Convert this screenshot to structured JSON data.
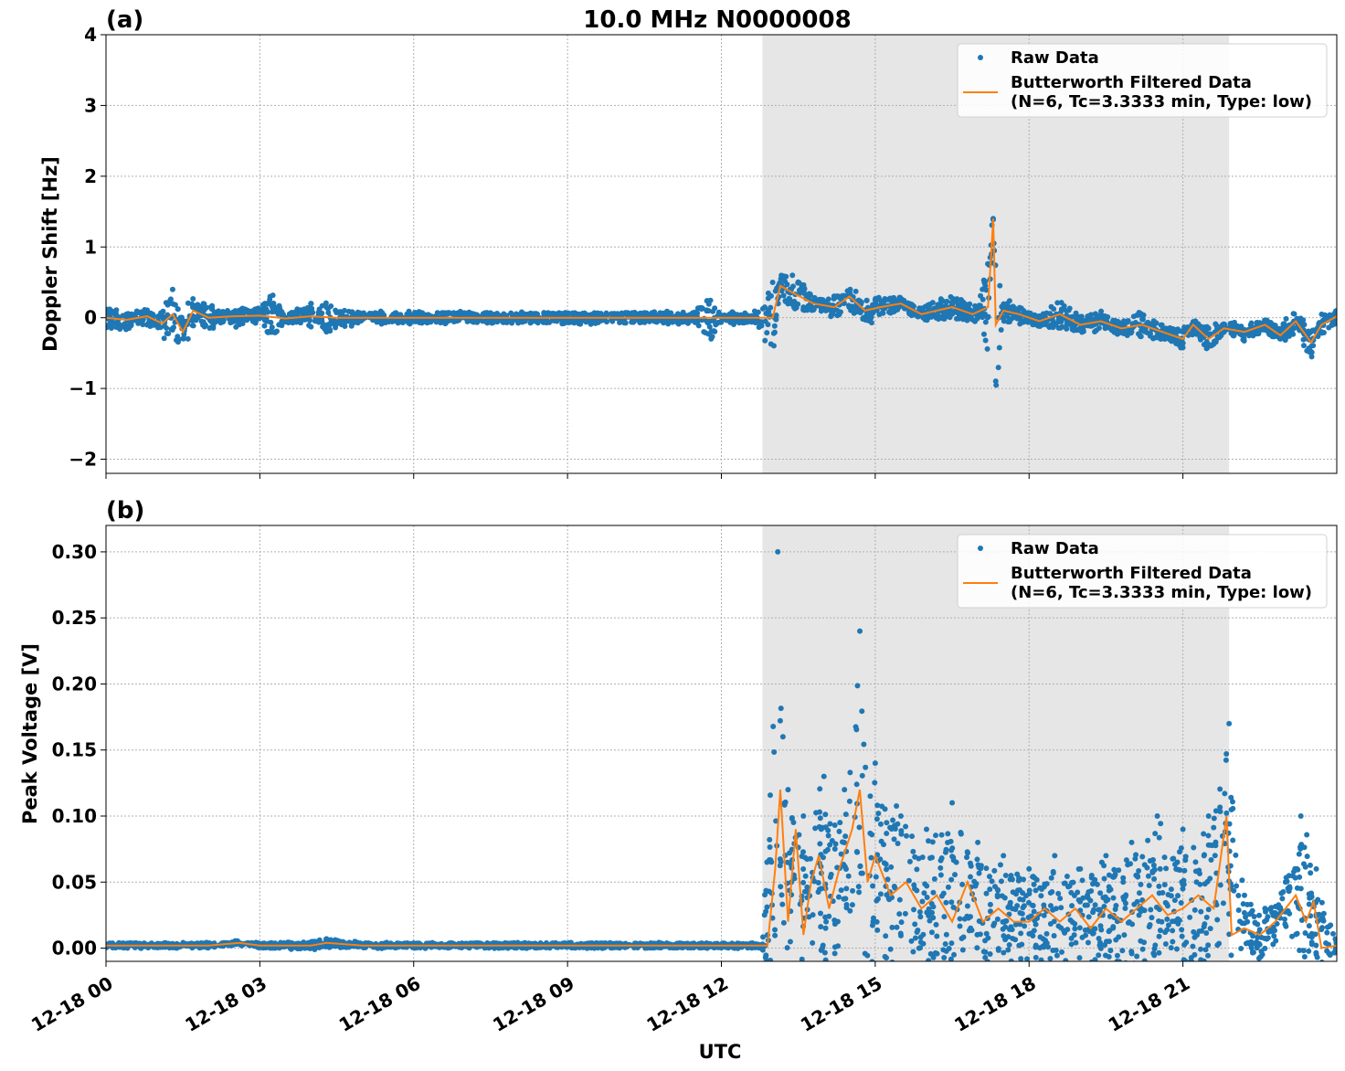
{
  "chart_data": [
    {
      "panel_label": "(a)",
      "type": "scatter",
      "title": "10.0 MHz N0000008",
      "ylabel": "Doppler Shift [Hz]",
      "xlabel": "",
      "x_unit": "hours UTC from 12-18 00",
      "xlim": [
        0,
        24
      ],
      "ylim": [
        -2.2,
        4.0
      ],
      "yticks": [
        -2,
        -1,
        0,
        1,
        2,
        3,
        4
      ],
      "ytick_labels": [
        "−2",
        "−1",
        "0",
        "1",
        "2",
        "3",
        "4"
      ],
      "xticks": [
        0,
        3,
        6,
        9,
        12,
        15,
        18,
        21
      ],
      "grid": true,
      "legend_position": "top-right",
      "shaded_region_hours": [
        12.8,
        21.9
      ],
      "colors": {
        "raw": "#1f77b4",
        "filtered": "#ff7f0e",
        "shade": "#e6e6e6",
        "grid": "#b0b0b0"
      },
      "series": [
        {
          "name": "Raw Data",
          "style": "points",
          "x": [
            0.0,
            0.5,
            1.0,
            1.3,
            1.6,
            1.9,
            2.2,
            2.6,
            3.0,
            3.2,
            3.5,
            3.8,
            4.0,
            4.3,
            4.6,
            5.0,
            6.0,
            7.0,
            8.0,
            9.0,
            10.0,
            11.0,
            11.5,
            11.8,
            12.0,
            12.5,
            12.7,
            13.0,
            13.1,
            13.3,
            13.6,
            14.0,
            14.3,
            14.6,
            15.0,
            15.5,
            16.0,
            16.5,
            17.0,
            17.3,
            17.5,
            18.0,
            18.5,
            19.0,
            19.5,
            20.0,
            20.5,
            21.0,
            21.5,
            22.0,
            22.5,
            23.0,
            23.3,
            23.7,
            24.0
          ],
          "y": [
            0.08,
            0.05,
            -0.1,
            0.4,
            -0.3,
            0.2,
            0.02,
            -0.05,
            0.1,
            0.3,
            0.0,
            -0.05,
            0.2,
            -0.2,
            0.05,
            0.0,
            0.0,
            0.0,
            0.0,
            0.0,
            0.0,
            0.0,
            0.0,
            -0.3,
            0.02,
            0.0,
            0.0,
            0.5,
            0.4,
            0.2,
            0.15,
            0.2,
            0.3,
            0.15,
            0.25,
            0.2,
            0.0,
            0.05,
            0.0,
            1.4,
            0.0,
            0.0,
            -0.1,
            -0.15,
            -0.1,
            -0.2,
            -0.25,
            -0.2,
            -0.15,
            -0.2,
            -0.1,
            -0.3,
            -0.05,
            -0.2,
            0.0
          ]
        },
        {
          "name": "Butterworth Filtered Data\n(N=6, Tc=3.3333 min, Type: low)",
          "style": "line",
          "x": [
            0.0,
            0.4,
            0.8,
            1.1,
            1.3,
            1.5,
            1.7,
            2.0,
            2.5,
            3.0,
            3.5,
            4.0,
            4.5,
            5.0,
            6.0,
            7.0,
            8.0,
            9.0,
            10.0,
            11.0,
            11.5,
            12.0,
            12.5,
            12.9,
            13.0,
            13.15,
            13.4,
            13.8,
            14.2,
            14.5,
            14.8,
            15.1,
            15.5,
            15.9,
            16.2,
            16.5,
            16.9,
            17.2,
            17.3,
            17.35,
            17.5,
            17.8,
            18.2,
            18.6,
            19.0,
            19.4,
            19.8,
            20.2,
            20.6,
            21.0,
            21.2,
            21.5,
            21.8,
            22.2,
            22.6,
            22.9,
            23.2,
            23.5,
            23.7,
            24.0
          ],
          "y": [
            0.0,
            -0.03,
            0.02,
            -0.08,
            0.05,
            -0.2,
            0.1,
            0.0,
            0.02,
            0.03,
            -0.01,
            0.02,
            0.0,
            0.0,
            0.0,
            0.0,
            0.0,
            0.0,
            0.0,
            0.0,
            0.0,
            0.0,
            0.0,
            0.0,
            0.0,
            0.45,
            0.35,
            0.2,
            0.15,
            0.3,
            0.1,
            0.15,
            0.2,
            0.05,
            0.1,
            0.15,
            0.05,
            0.15,
            1.4,
            -0.1,
            0.1,
            0.05,
            -0.05,
            0.05,
            -0.1,
            -0.05,
            -0.15,
            -0.1,
            -0.2,
            -0.3,
            -0.1,
            -0.3,
            -0.15,
            -0.2,
            -0.1,
            -0.25,
            -0.05,
            -0.35,
            -0.1,
            0.02
          ]
        }
      ]
    },
    {
      "panel_label": "(b)",
      "type": "scatter",
      "title": "",
      "ylabel": "Peak Voltage [V]",
      "xlabel": "UTC",
      "x_unit": "hours UTC from 12-18 00",
      "xlim": [
        0,
        24
      ],
      "ylim": [
        -0.01,
        0.32
      ],
      "yticks": [
        0.0,
        0.05,
        0.1,
        0.15,
        0.2,
        0.25,
        0.3
      ],
      "ytick_labels": [
        "0.00",
        "0.05",
        "0.10",
        "0.15",
        "0.20",
        "0.25",
        "0.30"
      ],
      "xticks": [
        0,
        3,
        6,
        9,
        12,
        15,
        18,
        21
      ],
      "xtick_labels": [
        "12-18 00",
        "12-18 03",
        "12-18 06",
        "12-18 09",
        "12-18 12",
        "12-18 15",
        "12-18 18",
        "12-18 21"
      ],
      "grid": true,
      "legend_position": "top-right",
      "shaded_region_hours": [
        12.8,
        21.9
      ],
      "colors": {
        "raw": "#1f77b4",
        "filtered": "#ff7f0e",
        "shade": "#e6e6e6",
        "grid": "#b0b0b0"
      },
      "series": [
        {
          "name": "Raw Data",
          "style": "points",
          "x": [
            0.0,
            1.0,
            2.0,
            3.0,
            4.0,
            4.3,
            5.0,
            6.0,
            7.0,
            8.0,
            9.0,
            10.0,
            11.0,
            12.0,
            12.8,
            13.1,
            13.2,
            13.3,
            13.6,
            14.0,
            14.4,
            14.7,
            15.0,
            15.5,
            16.0,
            16.5,
            17.0,
            17.5,
            18.0,
            18.5,
            19.0,
            19.5,
            20.0,
            20.5,
            21.0,
            21.5,
            21.9,
            22.2,
            22.6,
            23.0,
            23.3,
            23.6,
            24.0
          ],
          "y": [
            0.003,
            0.003,
            0.003,
            0.003,
            0.004,
            0.007,
            0.003,
            0.003,
            0.003,
            0.003,
            0.003,
            0.003,
            0.003,
            0.003,
            0.003,
            0.3,
            0.16,
            0.12,
            0.1,
            0.13,
            0.12,
            0.24,
            0.14,
            0.1,
            0.09,
            0.11,
            0.08,
            0.07,
            0.06,
            0.07,
            0.06,
            0.07,
            0.08,
            0.1,
            0.09,
            0.1,
            0.17,
            0.04,
            0.03,
            0.05,
            0.1,
            0.06,
            0.003
          ]
        },
        {
          "name": "Butterworth Filtered Data\n(N=6, Tc=3.3333 min, Type: low)",
          "style": "line",
          "x": [
            0.0,
            1.0,
            2.0,
            2.6,
            3.0,
            4.0,
            4.3,
            5.0,
            6.0,
            7.0,
            8.0,
            9.0,
            10.0,
            11.0,
            12.0,
            12.9,
            13.05,
            13.15,
            13.3,
            13.45,
            13.6,
            13.75,
            13.9,
            14.1,
            14.3,
            14.55,
            14.7,
            14.85,
            15.0,
            15.3,
            15.6,
            15.9,
            16.2,
            16.5,
            16.8,
            17.1,
            17.4,
            17.7,
            18.0,
            18.3,
            18.6,
            18.9,
            19.2,
            19.5,
            19.8,
            20.1,
            20.4,
            20.7,
            21.0,
            21.3,
            21.6,
            21.85,
            21.95,
            22.2,
            22.5,
            22.8,
            23.0,
            23.2,
            23.4,
            23.55,
            23.7,
            24.0
          ],
          "y": [
            0.002,
            0.002,
            0.002,
            0.004,
            0.002,
            0.002,
            0.004,
            0.002,
            0.002,
            0.002,
            0.002,
            0.002,
            0.002,
            0.002,
            0.002,
            0.002,
            0.06,
            0.12,
            0.02,
            0.09,
            0.01,
            0.05,
            0.07,
            0.03,
            0.06,
            0.09,
            0.12,
            0.05,
            0.07,
            0.04,
            0.05,
            0.03,
            0.04,
            0.02,
            0.05,
            0.02,
            0.03,
            0.02,
            0.02,
            0.03,
            0.02,
            0.03,
            0.015,
            0.03,
            0.02,
            0.03,
            0.04,
            0.025,
            0.03,
            0.04,
            0.03,
            0.1,
            0.01,
            0.015,
            0.01,
            0.02,
            0.03,
            0.04,
            0.02,
            0.035,
            0.0,
            0.002
          ]
        }
      ]
    }
  ]
}
